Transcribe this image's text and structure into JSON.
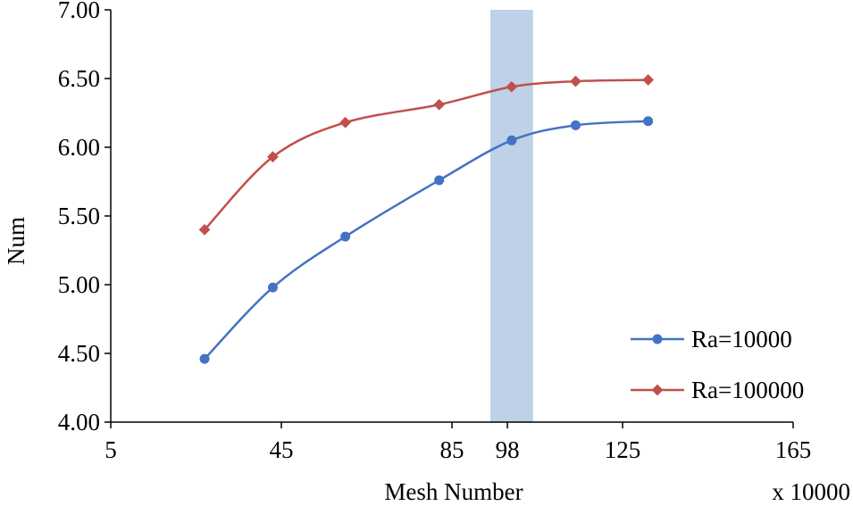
{
  "chart_data": {
    "type": "line",
    "title": "",
    "xlabel": "Mesh Number",
    "xlabel_multiplier": "x 10000",
    "ylabel": "Num",
    "xlim": [
      5,
      165
    ],
    "ylim": [
      4.0,
      7.0
    ],
    "x_tick_labels": [
      "5",
      "45",
      "85",
      "98",
      "125",
      "165"
    ],
    "x_ticks": [
      5,
      45,
      85,
      98,
      125,
      165
    ],
    "y_tick_labels": [
      "4.00",
      "4.50",
      "5.00",
      "5.50",
      "6.00",
      "6.50",
      "7.00"
    ],
    "y_ticks": [
      4.0,
      4.5,
      5.0,
      5.5,
      6.0,
      6.5,
      7.0
    ],
    "grid": false,
    "legend_position": "bottom-right",
    "highlight_band": {
      "x_start": 94,
      "x_end": 104,
      "color": "#b8cce4"
    },
    "series": [
      {
        "name": "Ra=10000",
        "marker": "circle",
        "color": "#4472c4",
        "x": [
          27,
          43,
          60,
          82,
          99,
          114,
          131
        ],
        "y": [
          4.46,
          4.98,
          5.35,
          5.76,
          6.05,
          6.16,
          6.19
        ]
      },
      {
        "name": "Ra=100000",
        "marker": "diamond",
        "color": "#c0504d",
        "x": [
          27,
          43,
          60,
          82,
          99,
          114,
          131
        ],
        "y": [
          5.4,
          5.93,
          6.18,
          6.31,
          6.44,
          6.48,
          6.49
        ]
      }
    ]
  }
}
